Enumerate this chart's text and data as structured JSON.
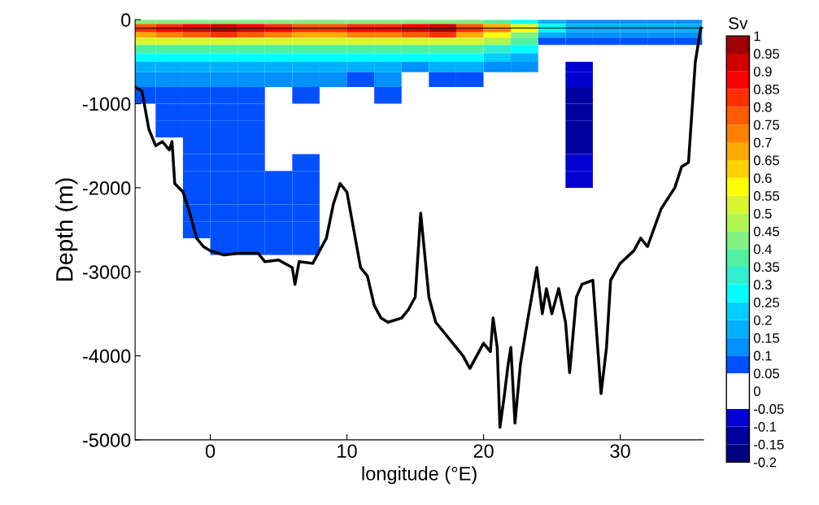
{
  "chart_data": {
    "type": "heatmap",
    "xlabel": "longitude (°E)",
    "ylabel": "Depth (m)",
    "clabel": "Sv",
    "xlim": [
      -5.5,
      36.1
    ],
    "ylim": [
      -5000,
      0
    ],
    "xticks": [
      0,
      10,
      20,
      30
    ],
    "yticks": [
      -5000,
      -4000,
      -3000,
      -2000,
      -1000,
      0
    ],
    "x": [
      -5,
      -3,
      -1,
      1,
      3,
      5,
      7,
      9,
      11,
      13,
      15,
      17,
      19,
      21,
      23,
      25,
      27,
      29,
      31,
      33,
      35
    ],
    "y": [
      -25,
      -75,
      -125,
      -175,
      -250,
      -350,
      -450,
      -550,
      -700,
      -900,
      -1100,
      -1300,
      -1500,
      -1700,
      -1900,
      -2100,
      -2300,
      -2500,
      -2700
    ],
    "cells": [
      [
        0.425,
        0.425,
        0.425,
        0.425,
        0.425,
        0.425,
        0.425,
        0.425,
        0.425,
        0.425,
        0.425,
        0.425,
        0.425,
        0.375,
        0.275,
        0.175,
        0.125,
        0.125,
        0.125,
        0.125,
        0.125
      ],
      [
        0.775,
        0.825,
        0.875,
        0.925,
        0.875,
        0.825,
        0.775,
        0.775,
        0.825,
        0.825,
        0.875,
        0.925,
        0.775,
        0.675,
        0.525,
        0.275,
        0.175,
        0.175,
        0.175,
        0.175,
        0.175
      ],
      [
        0.825,
        0.875,
        0.925,
        0.975,
        0.925,
        0.875,
        0.825,
        0.825,
        0.875,
        0.875,
        0.925,
        0.975,
        0.825,
        0.725,
        0.575,
        0.275,
        0.175,
        0.175,
        0.175,
        0.175,
        0.175
      ],
      [
        0.675,
        0.725,
        0.775,
        0.825,
        0.775,
        0.725,
        0.675,
        0.675,
        0.725,
        0.725,
        0.775,
        0.825,
        0.675,
        0.575,
        0.425,
        0.175,
        0.125,
        0.125,
        0.125,
        0.125,
        0.125
      ],
      [
        0.525,
        0.525,
        0.525,
        0.525,
        0.525,
        0.525,
        0.525,
        0.525,
        0.525,
        0.525,
        0.525,
        0.525,
        0.525,
        0.475,
        0.375,
        0.075,
        0.075,
        0.075,
        0.075,
        0.075,
        0.075
      ],
      [
        0.375,
        0.375,
        0.375,
        0.375,
        0.375,
        0.375,
        0.375,
        0.375,
        0.375,
        0.375,
        0.375,
        0.375,
        0.375,
        0.325,
        0.275,
        null,
        null,
        null,
        null,
        null,
        null
      ],
      [
        0.275,
        0.275,
        0.275,
        0.275,
        0.275,
        0.275,
        0.275,
        0.275,
        0.275,
        0.275,
        0.275,
        0.275,
        0.275,
        0.225,
        0.175,
        null,
        null,
        null,
        null,
        null,
        null
      ],
      [
        0.175,
        0.175,
        0.175,
        0.175,
        0.175,
        0.175,
        0.175,
        0.175,
        0.175,
        0.175,
        0.125,
        0.175,
        0.175,
        0.125,
        0.125,
        null,
        -0.075,
        null,
        null,
        null,
        null
      ],
      [
        0.125,
        0.125,
        0.125,
        0.125,
        0.125,
        0.125,
        0.125,
        0.125,
        0.075,
        0.125,
        null,
        0.075,
        0.075,
        null,
        null,
        null,
        -0.075,
        null,
        null,
        null,
        null
      ],
      [
        0.075,
        0.075,
        0.075,
        0.075,
        0.075,
        null,
        0.075,
        null,
        null,
        0.075,
        null,
        null,
        null,
        null,
        null,
        null,
        -0.125,
        null,
        null,
        null,
        null
      ],
      [
        null,
        0.075,
        0.075,
        0.075,
        0.075,
        null,
        null,
        null,
        null,
        null,
        null,
        null,
        null,
        null,
        null,
        null,
        -0.125,
        null,
        null,
        null,
        null
      ],
      [
        null,
        0.075,
        0.075,
        0.075,
        0.075,
        null,
        null,
        null,
        null,
        null,
        null,
        null,
        null,
        null,
        null,
        null,
        -0.125,
        null,
        null,
        null,
        null
      ],
      [
        null,
        null,
        0.075,
        0.075,
        0.075,
        null,
        null,
        null,
        null,
        null,
        null,
        null,
        null,
        null,
        null,
        null,
        -0.125,
        null,
        null,
        null,
        null
      ],
      [
        null,
        null,
        0.075,
        0.075,
        0.075,
        null,
        0.075,
        null,
        null,
        null,
        null,
        null,
        null,
        null,
        null,
        null,
        -0.075,
        null,
        null,
        null,
        null
      ],
      [
        null,
        null,
        0.075,
        0.075,
        0.075,
        0.075,
        0.075,
        null,
        null,
        null,
        null,
        null,
        null,
        null,
        null,
        null,
        -0.075,
        null,
        null,
        null,
        null
      ],
      [
        null,
        null,
        0.075,
        0.075,
        0.075,
        0.075,
        0.075,
        null,
        null,
        null,
        null,
        null,
        null,
        null,
        null,
        null,
        null,
        null,
        null,
        null,
        null
      ],
      [
        null,
        null,
        0.075,
        0.075,
        0.075,
        0.075,
        0.075,
        null,
        null,
        null,
        null,
        null,
        null,
        null,
        null,
        null,
        null,
        null,
        null,
        null,
        null
      ],
      [
        null,
        null,
        0.075,
        0.075,
        0.075,
        0.075,
        0.075,
        null,
        null,
        null,
        null,
        null,
        null,
        null,
        null,
        null,
        null,
        null,
        null,
        null,
        null
      ],
      [
        null,
        null,
        null,
        0.075,
        0.075,
        0.075,
        0.075,
        null,
        null,
        null,
        null,
        null,
        null,
        null,
        null,
        null,
        null,
        null,
        null,
        null,
        null
      ]
    ],
    "colors": [
      "#000080",
      "#0000a0",
      "#0000d0",
      "#ffffff",
      "#ffffff",
      "#0050ff",
      "#0090ff",
      "#00b0ff",
      "#00d0ff",
      "#00ffff",
      "#30f0d0",
      "#50f0a0",
      "#80f080",
      "#b0f550",
      "#d8f530",
      "#ffff00",
      "#ffd200",
      "#ffaa00",
      "#ff8000",
      "#ff5a00",
      "#ff3000",
      "#ff0000",
      "#d00000",
      "#a00000"
    ],
    "clim": [
      -0.2,
      1
    ],
    "cticks": [
      -0.2,
      -0.15,
      -0.1,
      -0.05,
      0,
      0.05,
      0.1,
      0.15,
      0.2,
      0.25,
      0.3,
      0.35,
      0.4,
      0.45,
      0.5,
      0.55,
      0.6,
      0.65,
      0.7,
      0.75,
      0.8,
      0.85,
      0.9,
      0.95,
      1
    ],
    "ref_lines": [
      {
        "axis": "y",
        "value": -100,
        "color": "#000000"
      }
    ],
    "series": [
      {
        "type": "line",
        "color": "#000000",
        "x": [
          -5.5,
          -5,
          -4.5,
          -4,
          -3.5,
          -3,
          -2.8,
          -2.6,
          -2,
          -1.5,
          -1,
          -0.5,
          0,
          1,
          2,
          3.5,
          4,
          5,
          6,
          6.2,
          6.5,
          7.5,
          8,
          8.5,
          9,
          9.5,
          10,
          10.5,
          11,
          11.5,
          12,
          12.5,
          13,
          14,
          14.5,
          15,
          15.4,
          16,
          16.5,
          17.5,
          18.5,
          19,
          19.5,
          20,
          20.5,
          20.7,
          21,
          21.2,
          21.5,
          21.8,
          22,
          22.3,
          22.7,
          23.2,
          23.9,
          24.3,
          24.6,
          25,
          25.5,
          26,
          26.3,
          26.8,
          27.2,
          28,
          28.6,
          29,
          29.3,
          30,
          31,
          31.5,
          32,
          33,
          34,
          34.5,
          35,
          35.5,
          35.9
        ],
        "values": [
          -800,
          -850,
          -1300,
          -1500,
          -1450,
          -1550,
          -1450,
          -1950,
          -2050,
          -2300,
          -2600,
          -2700,
          -2750,
          -2800,
          -2780,
          -2780,
          -2880,
          -2860,
          -2950,
          -3150,
          -2880,
          -2900,
          -2750,
          -2600,
          -2200,
          -1950,
          -2050,
          -2500,
          -2950,
          -3050,
          -3400,
          -3550,
          -3600,
          -3550,
          -3450,
          -3300,
          -2300,
          -3300,
          -3600,
          -3800,
          -4000,
          -4150,
          -4000,
          -3850,
          -3950,
          -3550,
          -3900,
          -4850,
          -4500,
          -4100,
          -3900,
          -4800,
          -4100,
          -3600,
          -2950,
          -3500,
          -3200,
          -3500,
          -3200,
          -3600,
          -4200,
          -3300,
          -3150,
          -3100,
          -4450,
          -3900,
          -3100,
          -2900,
          -2750,
          -2600,
          -2700,
          -2250,
          -2000,
          -1750,
          -1700,
          -500,
          -100
        ]
      }
    ]
  }
}
